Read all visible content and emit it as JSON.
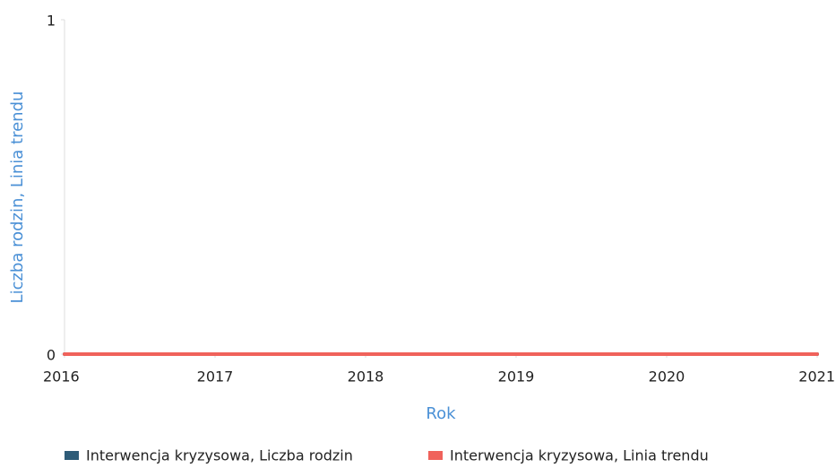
{
  "chart_data": {
    "type": "line",
    "x": [
      2016,
      2017,
      2018,
      2019,
      2020,
      2021
    ],
    "xlim": [
      2016,
      2021
    ],
    "xticks": [
      2016,
      2017,
      2018,
      2019,
      2020,
      2021
    ],
    "ylim": [
      0,
      1
    ],
    "yticks": [
      0,
      1
    ],
    "xlabel": "Rok",
    "ylabel": "Liczba rodzin, Linia trendu",
    "series": [
      {
        "name": "Interwencja kryzysowa, Liczba rodzin",
        "color": "#2e5c78",
        "values": [
          0,
          0,
          0,
          0,
          0,
          0
        ]
      },
      {
        "name": "Interwencja kryzysowa, Linia trendu",
        "color": "#f0625b",
        "values": [
          0,
          0,
          0,
          0,
          0,
          0
        ]
      }
    ]
  }
}
